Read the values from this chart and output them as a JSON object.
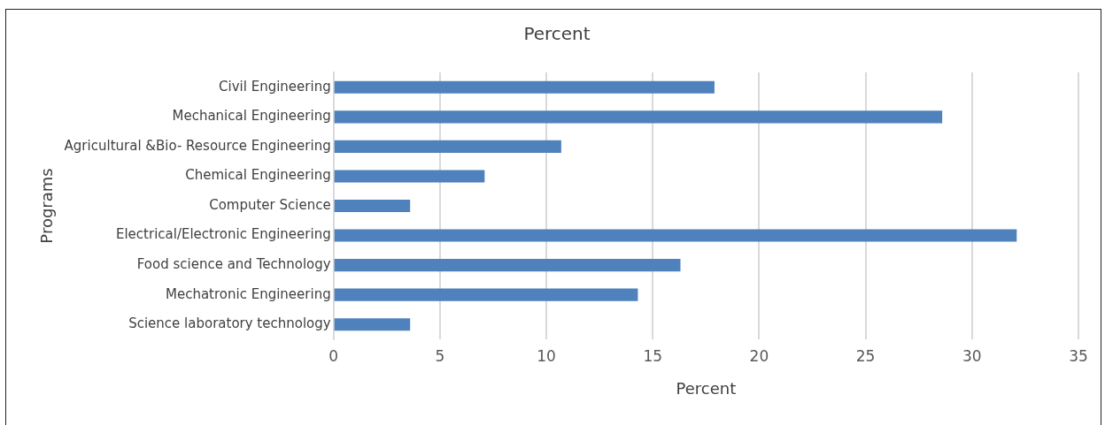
{
  "chart_data": {
    "type": "bar",
    "orientation": "horizontal",
    "title": "Percent",
    "xlabel": "Percent",
    "ylabel": "Programs",
    "categories": [
      "Civil Engineering",
      "Mechanical Engineering",
      "Agricultural &Bio- Resource Engineering",
      "Chemical Engineering",
      "Computer Science",
      "Electrical/Electronic Engineering",
      "Food science and Technology",
      "Mechatronic Engineering",
      "Science laboratory technology"
    ],
    "values": [
      17.9,
      28.6,
      10.7,
      7.1,
      3.6,
      32.1,
      16.3,
      14.3,
      3.6
    ],
    "color": "#4f81bd",
    "xlim": [
      0,
      35
    ],
    "xticks": [
      0,
      5,
      10,
      15,
      20,
      25,
      30,
      35
    ],
    "grid": "x",
    "legend": false
  }
}
